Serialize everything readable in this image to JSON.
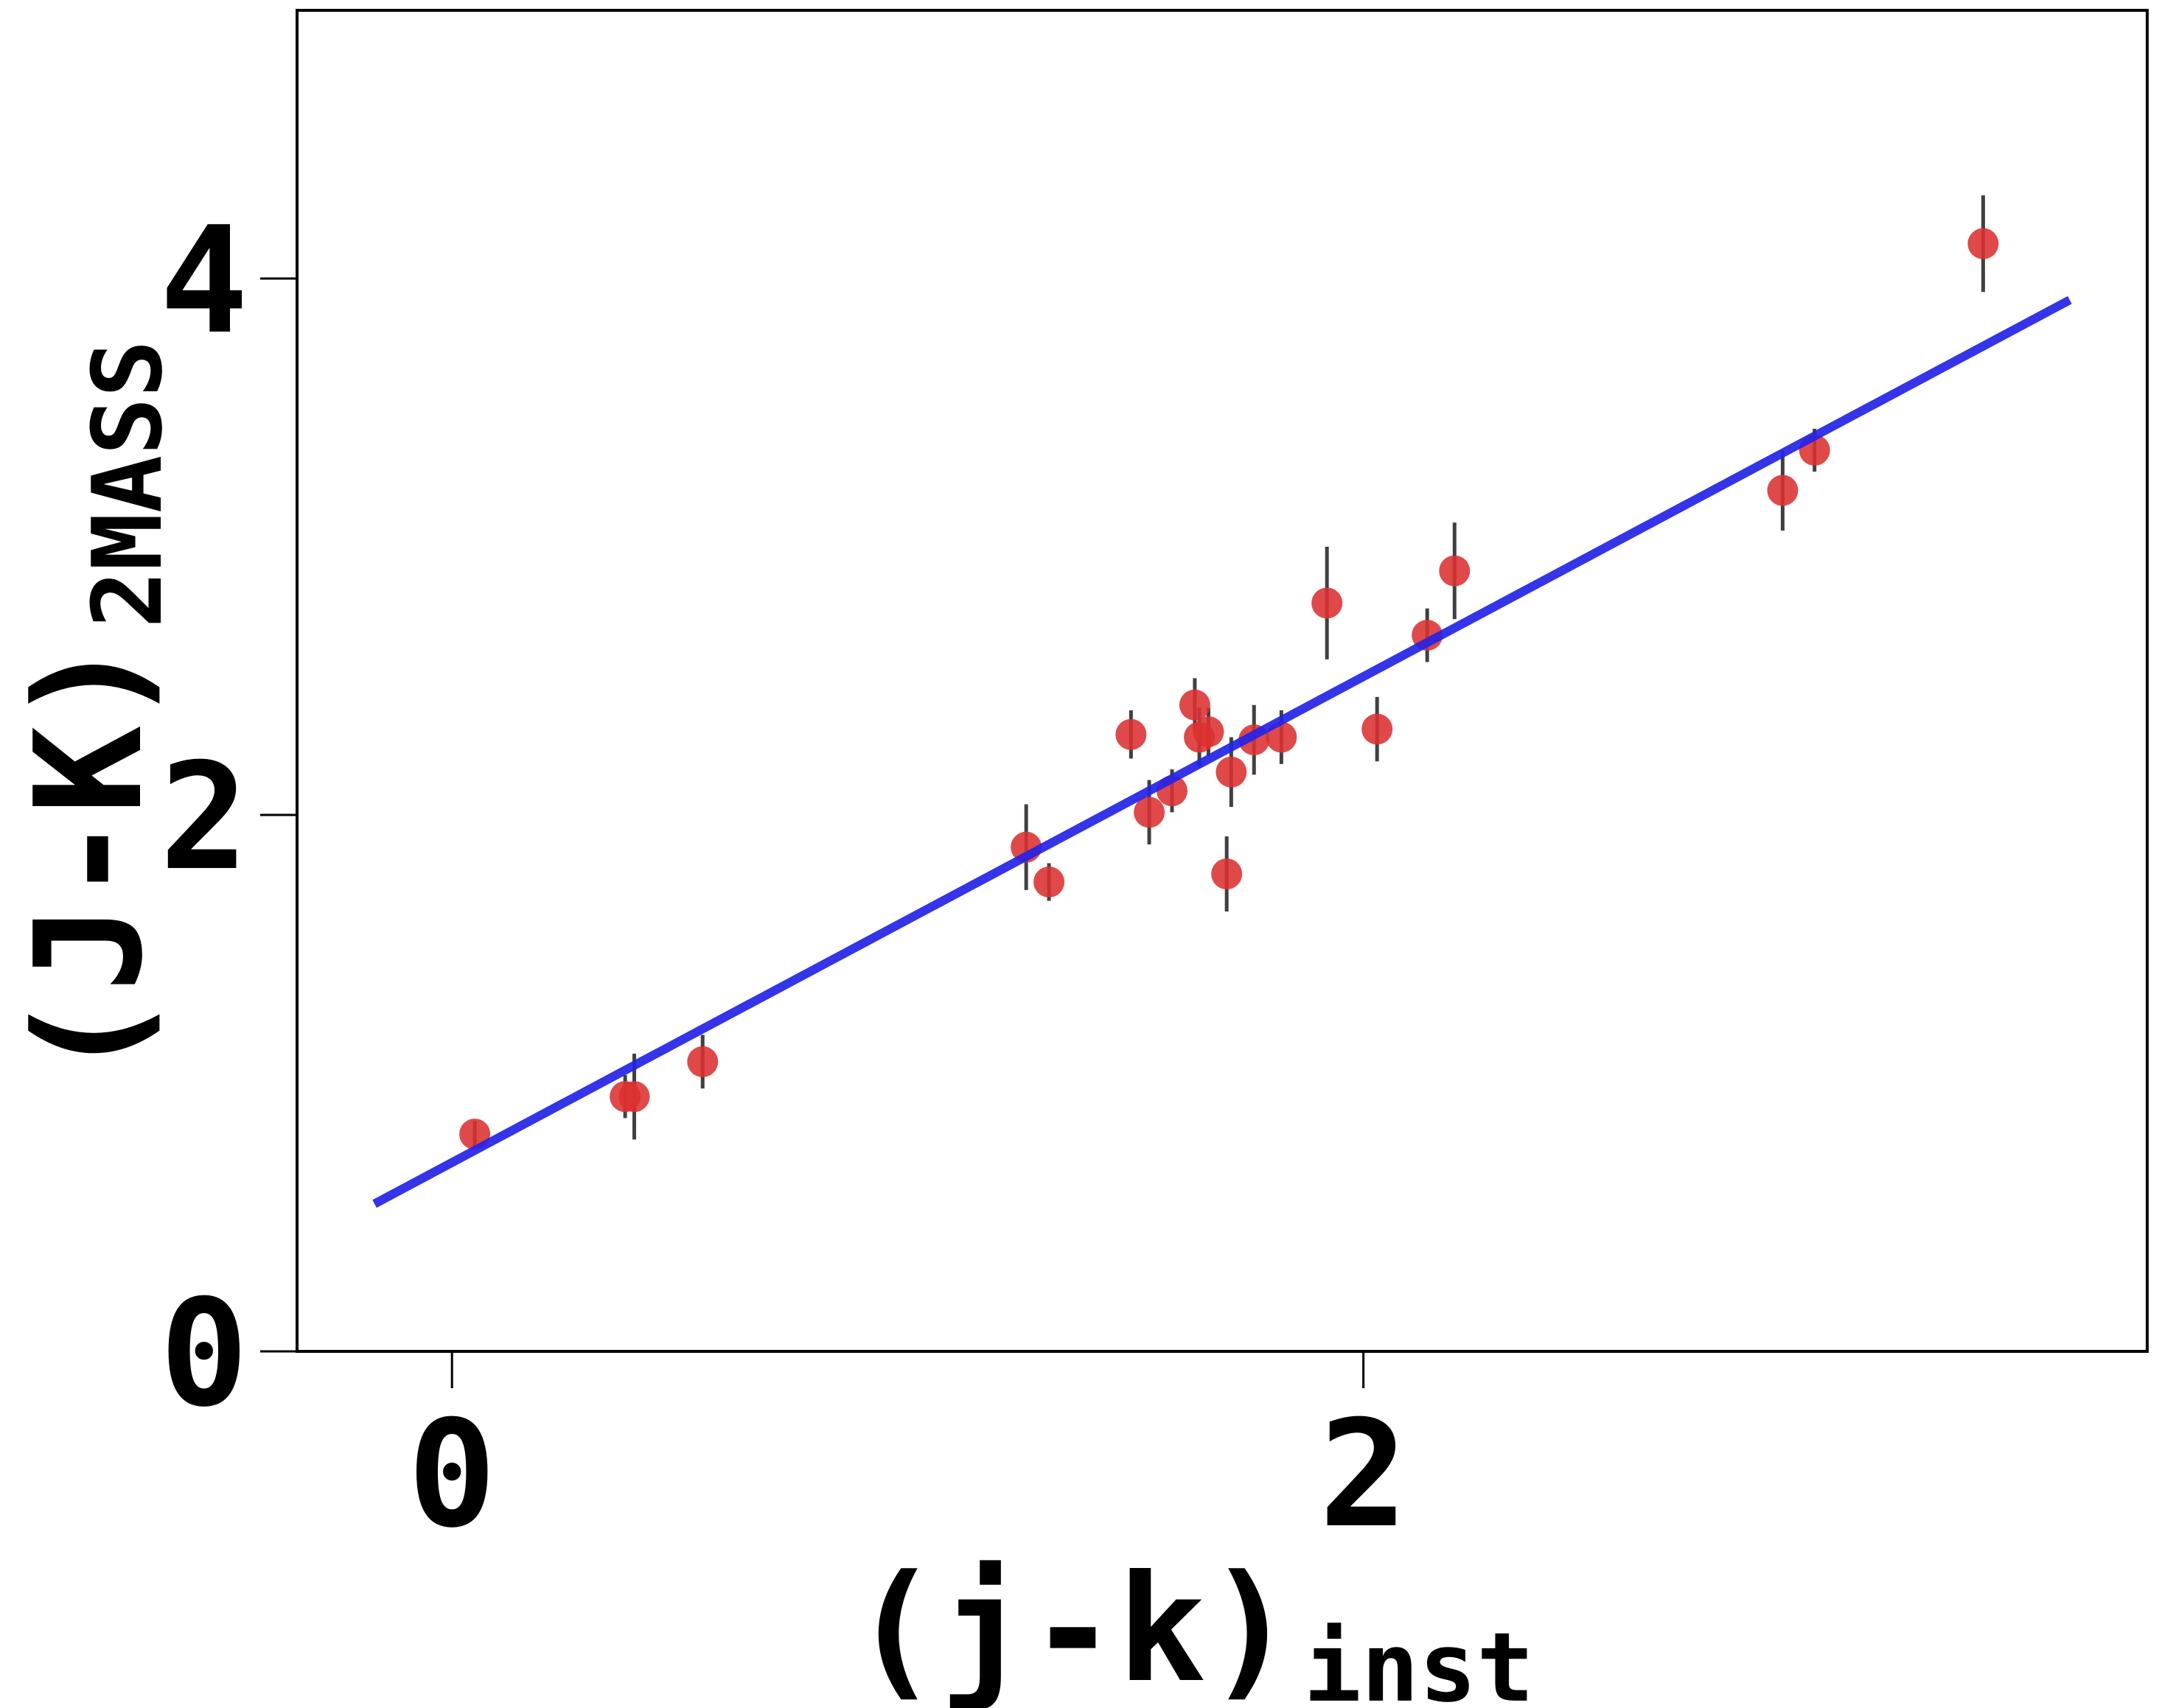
{
  "chart_data": {
    "type": "scatter",
    "title": "",
    "xlabel": "(j-k)",
    "xlabel_sub": "inst",
    "ylabel": "(J-K)",
    "ylabel_sub": "2MASS",
    "xlim": [
      -0.34,
      3.72
    ],
    "ylim": [
      0,
      5.0
    ],
    "xticks": [
      0,
      2
    ],
    "yticks": [
      0,
      2,
      4
    ],
    "grid": false,
    "legend": "none",
    "colors": {
      "points": "#dc3030",
      "errorbar": "#404040",
      "fit": "#2323e8"
    },
    "series": [
      {
        "type": "scatter",
        "x": [
          0.05,
          0.38,
          0.4,
          0.55,
          1.26,
          1.31,
          1.49,
          1.53,
          1.58,
          1.63,
          1.64,
          1.66,
          1.7,
          1.71,
          1.76,
          1.82,
          1.92,
          2.03,
          2.14,
          2.2,
          2.92,
          2.99,
          3.36
        ],
        "y": [
          0.81,
          0.95,
          0.95,
          1.08,
          1.88,
          1.75,
          2.3,
          2.01,
          2.09,
          2.41,
          2.29,
          2.31,
          1.78,
          2.16,
          2.28,
          2.29,
          2.79,
          2.32,
          2.67,
          2.91,
          3.21,
          3.36,
          4.13
        ],
        "yerr": [
          0.05,
          0.08,
          0.16,
          0.1,
          0.16,
          0.07,
          0.09,
          0.12,
          0.08,
          0.1,
          0.11,
          0.09,
          0.14,
          0.13,
          0.13,
          0.1,
          0.21,
          0.12,
          0.1,
          0.18,
          0.15,
          0.08,
          0.18
        ]
      },
      {
        "type": "line",
        "x": [
          -0.17,
          3.55
        ],
        "y": [
          0.55,
          3.92
        ]
      }
    ]
  }
}
